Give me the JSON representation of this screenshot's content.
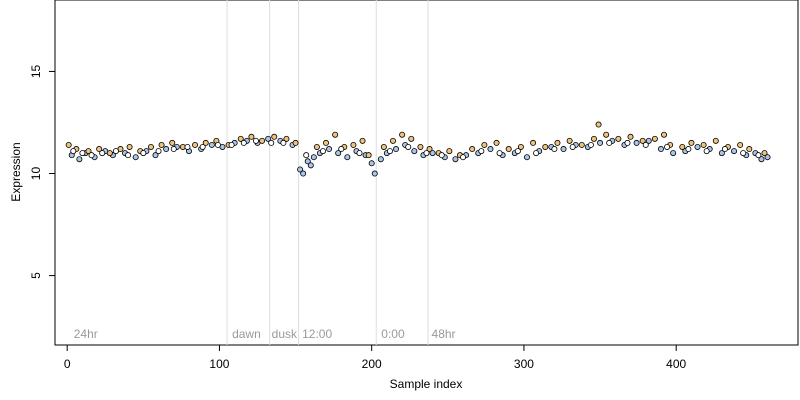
{
  "chart_data": {
    "type": "scatter",
    "title": "",
    "xlabel": "Sample index",
    "ylabel": "Expression",
    "xlim": [
      -8,
      480
    ],
    "ylim": [
      1.6,
      18.5
    ],
    "xticks": [
      0,
      100,
      200,
      300,
      400
    ],
    "yticks": [
      5,
      10,
      15
    ],
    "grid": false,
    "phase_boundaries": [
      105,
      133,
      152,
      203,
      237
    ],
    "phase_labels": [
      {
        "label": "24hr",
        "x": 3
      },
      {
        "label": "dawn",
        "x": 107
      },
      {
        "label": "dusk",
        "x": 133
      },
      {
        "label": "12:00",
        "x": 153
      },
      {
        "label": "0:00",
        "x": 205
      },
      {
        "label": "48hr",
        "x": 238
      }
    ],
    "point_colors": {
      "light_blue": "#a9c6ea",
      "orange": "#f0c27a",
      "outline": "#000000"
    },
    "series": [
      {
        "color": "#a9c6ea",
        "points": [
          [
            3,
            10.9
          ],
          [
            8,
            10.7
          ],
          [
            12,
            11.0
          ],
          [
            18,
            10.8
          ],
          [
            25,
            11.1
          ],
          [
            30,
            10.9
          ],
          [
            38,
            11.0
          ],
          [
            45,
            10.8
          ],
          [
            52,
            11.1
          ],
          [
            58,
            10.9
          ],
          [
            65,
            11.2
          ],
          [
            72,
            11.3
          ],
          [
            80,
            11.1
          ],
          [
            88,
            11.2
          ],
          [
            95,
            11.4
          ],
          [
            102,
            11.3
          ],
          [
            110,
            11.5
          ],
          [
            118,
            11.6
          ],
          [
            125,
            11.5
          ],
          [
            132,
            11.7
          ],
          [
            140,
            11.6
          ],
          [
            148,
            11.4
          ],
          [
            153,
            10.2
          ],
          [
            155,
            10.0
          ],
          [
            158,
            10.6
          ],
          [
            160,
            10.4
          ],
          [
            162,
            10.8
          ],
          [
            166,
            11.0
          ],
          [
            172,
            11.2
          ],
          [
            178,
            11.0
          ],
          [
            184,
            10.8
          ],
          [
            190,
            11.1
          ],
          [
            196,
            10.9
          ],
          [
            200,
            10.5
          ],
          [
            202,
            10.0
          ],
          [
            206,
            10.7
          ],
          [
            210,
            11.0
          ],
          [
            216,
            11.2
          ],
          [
            222,
            11.4
          ],
          [
            228,
            11.1
          ],
          [
            234,
            10.9
          ],
          [
            240,
            11.0
          ],
          [
            248,
            10.8
          ],
          [
            255,
            10.7
          ],
          [
            262,
            10.9
          ],
          [
            270,
            11.0
          ],
          [
            278,
            11.2
          ],
          [
            286,
            10.9
          ],
          [
            294,
            11.0
          ],
          [
            302,
            10.8
          ],
          [
            310,
            11.1
          ],
          [
            318,
            11.3
          ],
          [
            326,
            11.2
          ],
          [
            334,
            11.4
          ],
          [
            342,
            11.3
          ],
          [
            350,
            11.5
          ],
          [
            358,
            11.6
          ],
          [
            366,
            11.4
          ],
          [
            374,
            11.5
          ],
          [
            382,
            11.6
          ],
          [
            390,
            11.2
          ],
          [
            398,
            11.0
          ],
          [
            406,
            11.1
          ],
          [
            414,
            11.3
          ],
          [
            422,
            11.2
          ],
          [
            430,
            11.0
          ],
          [
            438,
            11.1
          ],
          [
            446,
            10.9
          ],
          [
            452,
            11.0
          ],
          [
            456,
            10.7
          ],
          [
            460,
            10.8
          ]
        ]
      },
      {
        "color": "#f0c27a",
        "points": [
          [
            1,
            11.4
          ],
          [
            6,
            11.2
          ],
          [
            14,
            11.1
          ],
          [
            21,
            11.2
          ],
          [
            28,
            11.0
          ],
          [
            35,
            11.2
          ],
          [
            41,
            11.3
          ],
          [
            48,
            11.1
          ],
          [
            55,
            11.3
          ],
          [
            62,
            11.4
          ],
          [
            69,
            11.5
          ],
          [
            76,
            11.3
          ],
          [
            84,
            11.4
          ],
          [
            91,
            11.5
          ],
          [
            98,
            11.6
          ],
          [
            106,
            11.4
          ],
          [
            114,
            11.7
          ],
          [
            121,
            11.8
          ],
          [
            128,
            11.6
          ],
          [
            136,
            11.8
          ],
          [
            144,
            11.7
          ],
          [
            150,
            11.5
          ],
          [
            164,
            11.3
          ],
          [
            170,
            11.5
          ],
          [
            176,
            11.9
          ],
          [
            182,
            11.3
          ],
          [
            188,
            11.4
          ],
          [
            194,
            11.6
          ],
          [
            198,
            10.9
          ],
          [
            208,
            11.3
          ],
          [
            214,
            11.6
          ],
          [
            220,
            11.9
          ],
          [
            226,
            11.7
          ],
          [
            232,
            11.3
          ],
          [
            238,
            11.2
          ],
          [
            244,
            11.0
          ],
          [
            251,
            11.1
          ],
          [
            258,
            10.9
          ],
          [
            266,
            11.2
          ],
          [
            274,
            11.4
          ],
          [
            282,
            11.5
          ],
          [
            290,
            11.2
          ],
          [
            298,
            11.3
          ],
          [
            306,
            11.5
          ],
          [
            314,
            11.3
          ],
          [
            322,
            11.5
          ],
          [
            330,
            11.6
          ],
          [
            338,
            11.4
          ],
          [
            346,
            11.7
          ],
          [
            349,
            12.4
          ],
          [
            354,
            11.9
          ],
          [
            362,
            11.7
          ],
          [
            370,
            11.8
          ],
          [
            378,
            11.6
          ],
          [
            386,
            11.7
          ],
          [
            392,
            11.9
          ],
          [
            396,
            11.4
          ],
          [
            404,
            11.3
          ],
          [
            410,
            11.5
          ],
          [
            418,
            11.4
          ],
          [
            426,
            11.6
          ],
          [
            434,
            11.3
          ],
          [
            442,
            11.4
          ],
          [
            448,
            11.2
          ],
          [
            458,
            11.0
          ]
        ]
      },
      {
        "color": "#ffffff",
        "points": [
          [
            4,
            11.1
          ],
          [
            10,
            11.0
          ],
          [
            16,
            10.9
          ],
          [
            23,
            11.0
          ],
          [
            32,
            11.1
          ],
          [
            40,
            10.9
          ],
          [
            50,
            11.0
          ],
          [
            60,
            11.1
          ],
          [
            70,
            11.2
          ],
          [
            79,
            11.3
          ],
          [
            89,
            11.3
          ],
          [
            99,
            11.4
          ],
          [
            108,
            11.4
          ],
          [
            116,
            11.5
          ],
          [
            124,
            11.6
          ],
          [
            134,
            11.5
          ],
          [
            142,
            11.5
          ],
          [
            157,
            10.9
          ],
          [
            168,
            11.1
          ],
          [
            180,
            11.2
          ],
          [
            192,
            11.0
          ],
          [
            212,
            11.1
          ],
          [
            224,
            11.3
          ],
          [
            236,
            11.0
          ],
          [
            246,
            10.9
          ],
          [
            260,
            10.8
          ],
          [
            272,
            11.1
          ],
          [
            284,
            11.0
          ],
          [
            296,
            11.1
          ],
          [
            308,
            11.0
          ],
          [
            320,
            11.2
          ],
          [
            332,
            11.3
          ],
          [
            344,
            11.4
          ],
          [
            356,
            11.5
          ],
          [
            368,
            11.5
          ],
          [
            380,
            11.4
          ],
          [
            394,
            11.3
          ],
          [
            408,
            11.2
          ],
          [
            420,
            11.1
          ],
          [
            432,
            11.2
          ],
          [
            444,
            11.0
          ],
          [
            454,
            10.9
          ]
        ]
      }
    ]
  }
}
